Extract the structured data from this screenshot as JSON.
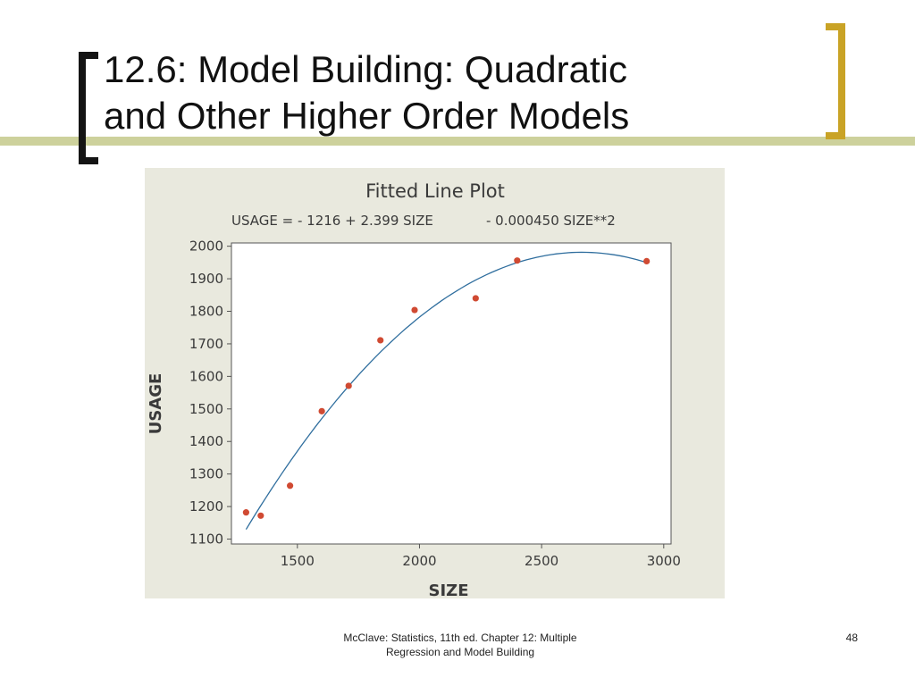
{
  "slide": {
    "title_line1": "12.6: Model Building: Quadratic",
    "title_line2": "and Other Higher Order Models",
    "footer_line1": "McClave: Statistics, 11th ed. Chapter 12: Multiple",
    "footer_line2": "Regression and Model Building",
    "page_number": "48"
  },
  "colors": {
    "accent_gold": "#c9a326",
    "stripe": "#cdd19c",
    "panel_bg": "#e9e9de",
    "point": "#d04a32",
    "fit_line": "#2f6e9e"
  },
  "chart_data": {
    "type": "scatter",
    "title": "Fitted Line Plot",
    "subtitle_left": "USAGE =  - 1216 + 2.399 SIZE",
    "subtitle_right": "- 0.000450 SIZE**2",
    "xlabel": "SIZE",
    "ylabel": "USAGE",
    "xlim": [
      1230,
      3030
    ],
    "ylim": [
      1085,
      2010
    ],
    "xticks": [
      1500,
      2000,
      2500,
      3000
    ],
    "yticks": [
      1100,
      1200,
      1300,
      1400,
      1500,
      1600,
      1700,
      1800,
      1900,
      2000
    ],
    "grid": false,
    "points": [
      {
        "x": 1290,
        "y": 1182
      },
      {
        "x": 1350,
        "y": 1172
      },
      {
        "x": 1470,
        "y": 1264
      },
      {
        "x": 1600,
        "y": 1493
      },
      {
        "x": 1710,
        "y": 1571
      },
      {
        "x": 1840,
        "y": 1711
      },
      {
        "x": 1980,
        "y": 1804
      },
      {
        "x": 2230,
        "y": 1840
      },
      {
        "x": 2400,
        "y": 1956
      },
      {
        "x": 2930,
        "y": 1954
      }
    ],
    "fit": {
      "intercept": -1216,
      "b1": 2.399,
      "b2": -0.00045,
      "x_from": 1290,
      "x_to": 2930
    }
  }
}
